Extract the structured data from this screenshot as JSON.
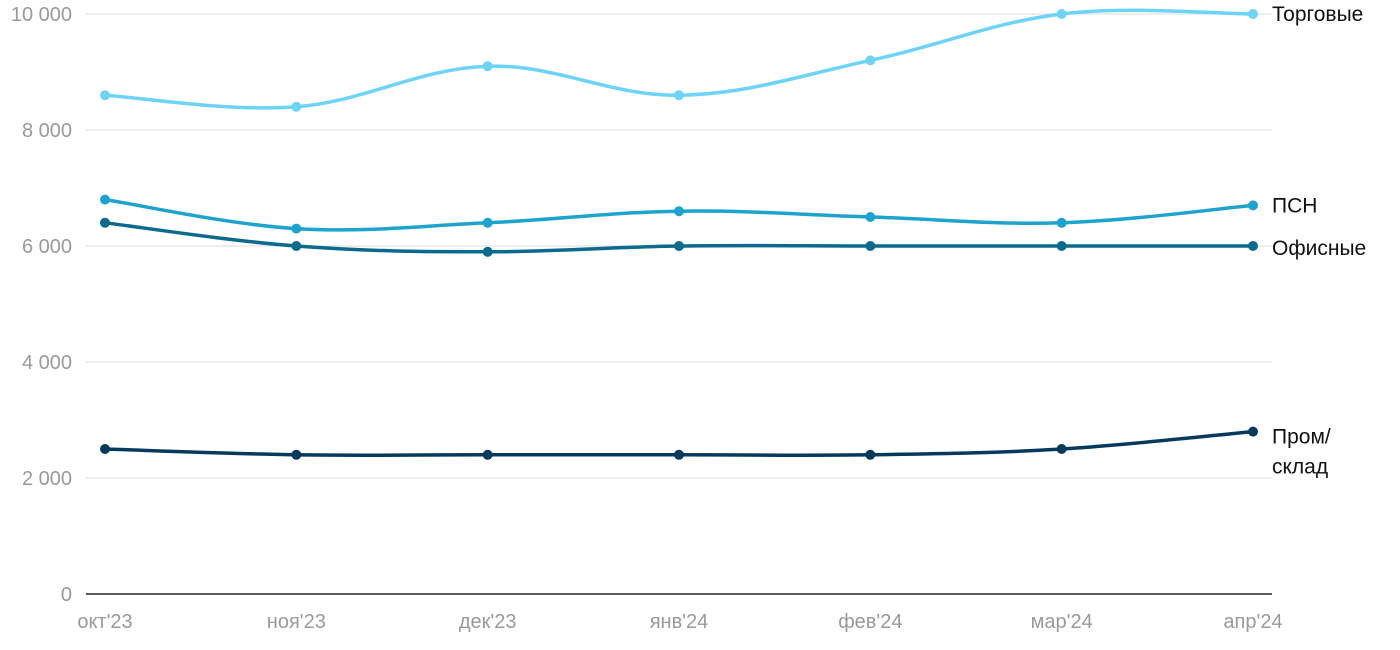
{
  "chart_data": {
    "type": "line",
    "title": "",
    "xlabel": "",
    "ylabel": "",
    "categories": [
      "окт'23",
      "ноя'23",
      "дек'23",
      "янв'24",
      "фев'24",
      "мар'24",
      "апр'24"
    ],
    "ylim": [
      0,
      10000
    ],
    "yticks": [
      0,
      2000,
      4000,
      6000,
      8000,
      10000
    ],
    "ytick_labels": [
      "0",
      "2 000",
      "4 000",
      "6 000",
      "8 000",
      "10 000"
    ],
    "grid": true,
    "legend": "inline-right",
    "series": [
      {
        "name": "Торговые",
        "label_lines": [
          "Торговые"
        ],
        "color": "#6dd3f7",
        "values": [
          8600,
          8400,
          9100,
          8600,
          9200,
          10000,
          10000
        ]
      },
      {
        "name": "ПСН",
        "label_lines": [
          "ПСН"
        ],
        "color": "#1ea3cf",
        "values": [
          6800,
          6300,
          6400,
          6600,
          6500,
          6400,
          6700
        ]
      },
      {
        "name": "Офисные",
        "label_lines": [
          "Офисные"
        ],
        "color": "#0b6a8e",
        "values": [
          6400,
          6000,
          5900,
          6000,
          6000,
          6000,
          6000
        ]
      },
      {
        "name": "Пром/склад",
        "label_lines": [
          "Пром/",
          "склад"
        ],
        "color": "#063a5c",
        "values": [
          2500,
          2400,
          2400,
          2400,
          2400,
          2500,
          2800
        ]
      }
    ]
  }
}
